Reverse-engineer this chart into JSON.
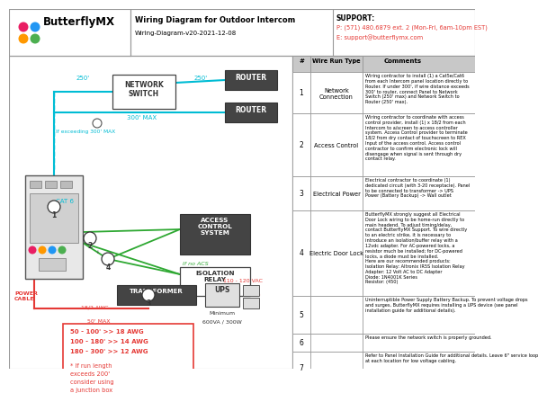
{
  "title": "Wiring Diagram for Outdoor Intercom",
  "subtitle": "Wiring-Diagram-v20-2021-12-08",
  "logo_text": "ButterflyMX",
  "support_line1": "SUPPORT:",
  "support_line2": "P: (571) 480.6879 ext. 2 (Mon-Fri, 6am-10pm EST)",
  "support_line3": "E: support@butterflymx.com",
  "bg_color": "#ffffff",
  "cyan_color": "#00bcd4",
  "green_color": "#2ea832",
  "red_color": "#e53935",
  "table_header_bg": "#c8c8c8",
  "border_color": "#999999",
  "wire_run_types": [
    "Network Connection",
    "Access Control",
    "Electrical Power",
    "Electric Door Lock",
    "",
    "",
    ""
  ],
  "comments_short": [
    "Wiring contractor to install (1) a Cat5e/Cat6\nfrom each Intercom panel location directly to\nRouter. If under 300', if wire distance exceeds\n300' to router, connect Panel to Network\nSwitch (250' max) and Network Switch to\nRouter (250' max).",
    "Wiring contractor to coordinate with access\ncontrol provider, install (1) x 18/2 from each\nIntercom to a/screen to access controller\nsystem. Access Control provider to terminate\n18/2 from dry contact of touchscreen to REX\nInput of the access control. Access control\ncontractor to confirm electronic lock will\ndisengage when signal is sent through dry\ncontact relay.",
    "Electrical contractor to coordinate (1)\ndedicated circuit (with 3-20 receptacle). Panel\nto be connected to transformer -> UPS\nPower (Battery Backup) -> Wall outlet",
    "ButterflyMX strongly suggest all Electrical\nDoor Lock wiring to be home-run directly to\nmain headend. To adjust timing/delay,\ncontact ButterflyMX Support. To wire directly\nto an electric strike, it is necessary to\nintroduce an isolation/buffer relay with a\n12vdc adapter. For AC-powered locks, a\nresistor much be installed; for DC-powered\nlocks, a diode must be installed.\nHere are our recommended products:\nIsolation Relay: Altronix IR5S Isolation Relay\nAdapter: 12 Volt AC to DC Adapter\nDiode: 1N4001K Series\nResistor: (450)",
    "Uninterruptible Power Supply Battery Backup. To prevent voltage drops\nand surges, ButterflyMX requires installing a UPS device (see panel\ninstallation guide for additional details).",
    "Please ensure the network switch is properly grounded.",
    "Refer to Panel Installation Guide for additional details. Leave 6\" service loop\nat each location for low voltage cabling."
  ]
}
